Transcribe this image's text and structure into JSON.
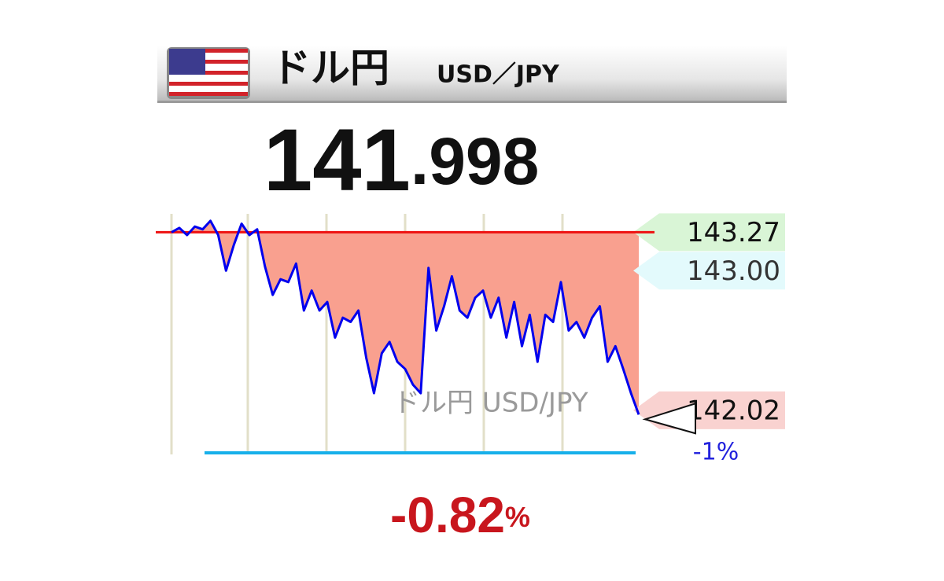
{
  "header": {
    "title": "ドル円",
    "pair": "USD／JPY"
  },
  "price": {
    "integer": "141",
    "decimal": ".998"
  },
  "chart_data": {
    "type": "line",
    "watermark": "ドル円 USD/JPY",
    "color": "#0000ee",
    "values": [
      143.27,
      143.3,
      143.25,
      143.31,
      143.29,
      143.35,
      143.25,
      143.0,
      143.18,
      143.33,
      143.25,
      143.29,
      143.03,
      142.83,
      142.94,
      142.92,
      143.05,
      142.72,
      142.86,
      142.72,
      142.78,
      142.53,
      142.67,
      142.64,
      142.72,
      142.39,
      142.14,
      142.42,
      142.5,
      142.36,
      142.31,
      142.2,
      142.14,
      143.02,
      142.58,
      142.75,
      142.96,
      142.72,
      142.67,
      142.81,
      142.86,
      142.67,
      142.81,
      142.53,
      142.78,
      142.47,
      142.69,
      142.36,
      142.69,
      142.64,
      142.92,
      142.58,
      142.64,
      142.53,
      142.67,
      142.75,
      142.36,
      142.47,
      142.31,
      142.14,
      141.99
    ],
    "ylim": [
      141.71,
      143.41
    ],
    "open": 143.27,
    "price_labels": [
      {
        "value": 143.27,
        "label": "143.27",
        "color": "#d9f5d6"
      },
      {
        "value": 143,
        "label": "143.00",
        "color": "#e3fafc"
      },
      {
        "value": 142.02,
        "label": "142.02",
        "color": "#f9d2d0"
      }
    ],
    "band_label": "-1%",
    "change": {
      "value": -0.82,
      "unit": "%"
    }
  }
}
